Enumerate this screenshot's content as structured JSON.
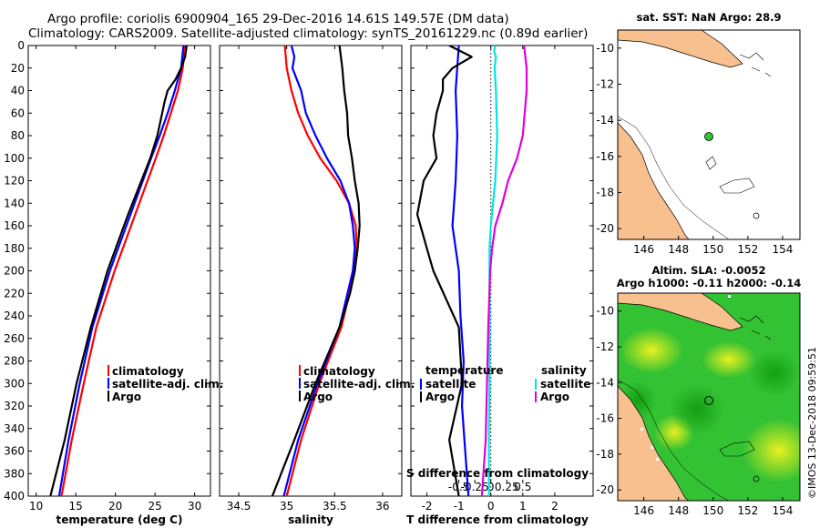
{
  "header": {
    "title_line1": "Argo profile: coriolis 6900904_165 29-Dec-2016 14.61S 149.57E (DM data)",
    "title_line2": "Climatology: CARS2009. Satellite-adjusted climatology: synTS_20161229.nc (0.89d earlier)"
  },
  "colors": {
    "climatology": "#ff0000",
    "satellite": "#0000ff",
    "argo": "#000000",
    "s_satellite": "#00e5e5",
    "s_argo": "#e000e0",
    "land": "#f7c08e",
    "sla_green": "#33c233"
  },
  "legend": {
    "climatology": "climatology",
    "satellite_adj": "satellite-adj. clim.",
    "argo": "Argo",
    "temperature": "temperature",
    "salinity": "salinity",
    "satellite": "satellite"
  },
  "chart_data": [
    {
      "type": "line",
      "name": "temperature",
      "xlabel": "temperature (deg C)",
      "xlim": [
        9,
        32
      ],
      "ylim": [
        400,
        0
      ],
      "xticks": [
        10,
        15,
        20,
        25,
        30
      ],
      "yticks": [
        0,
        20,
        40,
        60,
        80,
        100,
        120,
        140,
        160,
        180,
        200,
        220,
        240,
        260,
        280,
        300,
        320,
        340,
        360,
        380,
        400
      ],
      "series": [
        {
          "name": "climatology",
          "color": "#ff0000",
          "depth": [
            0,
            20,
            40,
            60,
            80,
            100,
            150,
            200,
            250,
            300,
            350,
            400
          ],
          "values": [
            28.8,
            28.5,
            27.9,
            27.0,
            26.1,
            25.1,
            22.5,
            19.9,
            17.6,
            16.0,
            14.5,
            13.2
          ]
        },
        {
          "name": "satellite-adj. clim.",
          "color": "#0000ff",
          "depth": [
            0,
            20,
            40,
            60,
            80,
            100,
            150,
            200,
            250,
            300,
            350,
            400
          ],
          "values": [
            28.6,
            28.3,
            27.5,
            26.6,
            25.6,
            24.5,
            21.9,
            19.3,
            17.1,
            15.5,
            14.1,
            12.9
          ]
        },
        {
          "name": "Argo",
          "color": "#000000",
          "depth": [
            0,
            10,
            20,
            30,
            40,
            50,
            60,
            80,
            100,
            150,
            200,
            250,
            300,
            350,
            400
          ],
          "values": [
            29.0,
            28.8,
            28.3,
            27.6,
            26.6,
            26.2,
            25.9,
            25.3,
            24.4,
            21.6,
            19.0,
            16.9,
            15.1,
            13.6,
            11.8
          ]
        }
      ]
    },
    {
      "type": "line",
      "name": "salinity",
      "xlabel": "salinity",
      "xlim": [
        34.3,
        36.2
      ],
      "ylim": [
        400,
        0
      ],
      "xticks": [
        34.5,
        35,
        35.5,
        36
      ],
      "xtick_labels": [
        "34.5",
        "35",
        "35.5",
        "36"
      ],
      "series": [
        {
          "name": "climatology",
          "color": "#ff0000",
          "depth": [
            0,
            20,
            40,
            60,
            80,
            100,
            120,
            140,
            160,
            180,
            200,
            250,
            300,
            350,
            400
          ],
          "values": [
            34.98,
            35.0,
            35.05,
            35.12,
            35.22,
            35.35,
            35.52,
            35.65,
            35.72,
            35.73,
            35.71,
            35.57,
            35.34,
            35.15,
            35.0
          ]
        },
        {
          "name": "satellite-adj. clim.",
          "color": "#0000ff",
          "depth": [
            0,
            10,
            20,
            40,
            60,
            80,
            100,
            120,
            140,
            160,
            180,
            200,
            250,
            300,
            350,
            400
          ],
          "values": [
            35.05,
            35.08,
            35.06,
            35.15,
            35.2,
            35.3,
            35.42,
            35.56,
            35.65,
            35.69,
            35.71,
            35.69,
            35.55,
            35.32,
            35.12,
            34.97
          ]
        },
        {
          "name": "Argo",
          "color": "#000000",
          "depth": [
            0,
            20,
            40,
            60,
            80,
            100,
            120,
            140,
            160,
            180,
            200,
            220,
            250,
            300,
            350,
            400
          ],
          "values": [
            35.55,
            35.58,
            35.6,
            35.63,
            35.64,
            35.68,
            35.71,
            35.75,
            35.76,
            35.74,
            35.71,
            35.66,
            35.55,
            35.3,
            35.08,
            34.85
          ]
        }
      ]
    },
    {
      "type": "line",
      "name": "difference",
      "xlabel": "T difference from climatology",
      "s_xlabel": "S difference from climatology",
      "xlim": [
        -2.5,
        3.2
      ],
      "ylim": [
        400,
        0
      ],
      "xticks": [
        -2,
        -1,
        0,
        1,
        2
      ],
      "s_ticks": [
        -0.5,
        -0.25,
        0,
        0.25,
        0.5
      ],
      "s_tick_labels": [
        "-0.5",
        "-0.25",
        "0",
        "0.25",
        "0.5"
      ],
      "series": [
        {
          "name": "T satellite",
          "color": "#0000ff",
          "depth": [
            0,
            40,
            80,
            120,
            160,
            200,
            240,
            280,
            320,
            360,
            400
          ],
          "values": [
            -1.0,
            -1.1,
            -1.05,
            -1.1,
            -1.2,
            -1.0,
            -0.95,
            -0.85,
            -0.9,
            -0.8,
            -0.7
          ]
        },
        {
          "name": "T Argo",
          "color": "#000000",
          "depth": [
            0,
            10,
            20,
            30,
            40,
            50,
            60,
            80,
            100,
            120,
            150,
            180,
            200,
            250,
            300,
            350,
            400
          ],
          "values": [
            -1.3,
            -0.6,
            -1.2,
            -1.5,
            -1.5,
            -1.6,
            -1.7,
            -1.8,
            -1.7,
            -2.1,
            -2.3,
            -2.0,
            -1.8,
            -1.0,
            -0.9,
            -1.3,
            -1.0
          ]
        },
        {
          "name": "S satellite",
          "color": "#00e5e5",
          "depth": [
            0,
            5,
            10,
            20,
            40,
            80,
            120,
            160,
            180,
            200,
            250,
            300,
            350,
            400
          ],
          "values": [
            0.07,
            0.05,
            0.08,
            0.06,
            0.08,
            0.1,
            0.07,
            0.0,
            -0.02,
            -0.02,
            -0.02,
            -0.02,
            -0.03,
            -0.03
          ]
        },
        {
          "name": "S Argo",
          "color": "#e000e0",
          "depth": [
            0,
            20,
            40,
            60,
            80,
            100,
            120,
            140,
            160,
            180,
            200,
            250,
            300,
            350,
            400
          ],
          "values": [
            0.52,
            0.56,
            0.56,
            0.53,
            0.5,
            0.41,
            0.27,
            0.18,
            0.07,
            0.02,
            -0.01,
            -0.04,
            -0.06,
            -0.08,
            -0.14
          ]
        }
      ]
    },
    {
      "type": "map",
      "name": "sst-map",
      "title": "sat. SST: NaN Argo: 28.9",
      "xticks": [
        146,
        148,
        150,
        152,
        154
      ],
      "yticks": [
        -10,
        -12,
        -14,
        -16,
        -18,
        -20
      ],
      "ytick_labels": [
        "-10",
        "-12",
        "-14",
        "-16",
        "-18",
        "-20"
      ],
      "float_position": [
        149.57,
        -14.61
      ]
    },
    {
      "type": "heatmap",
      "name": "sla-map",
      "title_line1": "Altim. SLA: -0.0052",
      "title_line2": "Argo h1000: -0.11 h2000: -0.14",
      "xticks": [
        146,
        148,
        150,
        152,
        154
      ],
      "yticks": [
        -10,
        -12,
        -14,
        -16,
        -18,
        -20
      ],
      "ytick_labels": [
        "-10",
        "-12",
        "-14",
        "-16",
        "-18",
        "-20"
      ],
      "float_position": [
        149.57,
        -14.61
      ]
    }
  ],
  "footer": {
    "credit": "©IMOS 13-Dec-2018 09:59:51"
  }
}
